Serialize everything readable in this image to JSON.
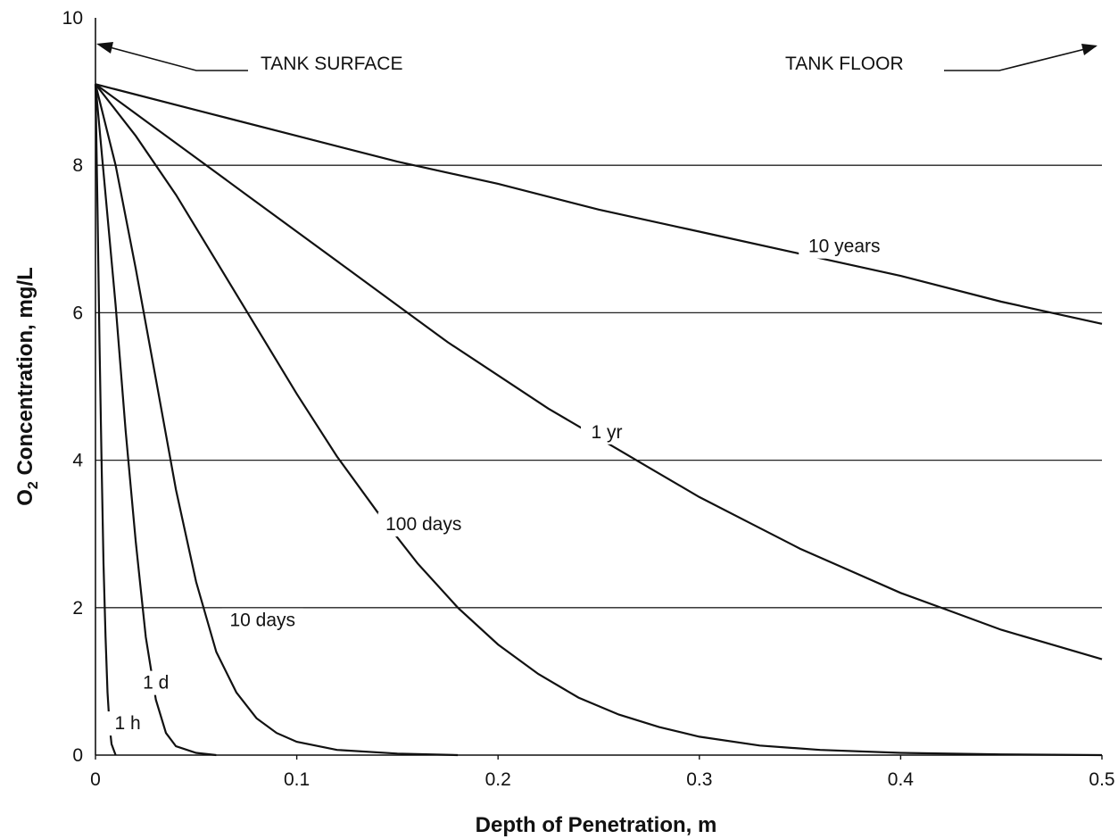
{
  "chart_data": {
    "type": "line",
    "xlabel": "Depth of Penetration, m",
    "ylabel_main": "O",
    "ylabel_sub": "2",
    "ylabel_rest": " Concentration, mg/L",
    "xlim": [
      0,
      0.5
    ],
    "ylim": [
      0,
      10
    ],
    "xticks": [
      0,
      0.1,
      0.2,
      0.3,
      0.4,
      0.5
    ],
    "xtick_labels": [
      "0",
      "0.1",
      "0.2",
      "0.3",
      "0.4",
      "0.5"
    ],
    "yticks": [
      0,
      2,
      4,
      6,
      8,
      10
    ],
    "ytick_labels": [
      "0",
      "2",
      "4",
      "6",
      "8",
      "10"
    ],
    "grid": "horizontal",
    "annotations": {
      "surface": "TANK SURFACE",
      "floor": "TANK FLOOR"
    },
    "series": [
      {
        "name": "1 h",
        "label_pos": [
          0.016,
          0.35
        ],
        "points": [
          [
            0,
            9.1
          ],
          [
            0.001,
            7.4
          ],
          [
            0.002,
            5.6
          ],
          [
            0.003,
            4.0
          ],
          [
            0.004,
            2.6
          ],
          [
            0.005,
            1.6
          ],
          [
            0.006,
            0.85
          ],
          [
            0.007,
            0.4
          ],
          [
            0.008,
            0.15
          ],
          [
            0.01,
            0.0
          ]
        ]
      },
      {
        "name": "1 d",
        "label_pos": [
          0.03,
          0.9
        ],
        "points": [
          [
            0,
            9.1
          ],
          [
            0.005,
            7.6
          ],
          [
            0.01,
            6.1
          ],
          [
            0.015,
            4.4
          ],
          [
            0.02,
            2.9
          ],
          [
            0.025,
            1.6
          ],
          [
            0.03,
            0.75
          ],
          [
            0.035,
            0.3
          ],
          [
            0.04,
            0.12
          ],
          [
            0.05,
            0.03
          ],
          [
            0.06,
            0.0
          ]
        ]
      },
      {
        "name": "10 days",
        "label_pos": [
          0.083,
          1.75
        ],
        "points": [
          [
            0,
            9.1
          ],
          [
            0.01,
            8.0
          ],
          [
            0.02,
            6.6
          ],
          [
            0.03,
            5.1
          ],
          [
            0.04,
            3.6
          ],
          [
            0.05,
            2.35
          ],
          [
            0.06,
            1.4
          ],
          [
            0.07,
            0.85
          ],
          [
            0.08,
            0.5
          ],
          [
            0.09,
            0.3
          ],
          [
            0.1,
            0.18
          ],
          [
            0.12,
            0.07
          ],
          [
            0.15,
            0.02
          ],
          [
            0.18,
            0.0
          ]
        ]
      },
      {
        "name": "100 days",
        "label_pos": [
          0.163,
          3.05
        ],
        "points": [
          [
            0,
            9.1
          ],
          [
            0.02,
            8.4
          ],
          [
            0.04,
            7.6
          ],
          [
            0.06,
            6.7
          ],
          [
            0.08,
            5.8
          ],
          [
            0.1,
            4.9
          ],
          [
            0.12,
            4.05
          ],
          [
            0.14,
            3.3
          ],
          [
            0.16,
            2.6
          ],
          [
            0.18,
            2.0
          ],
          [
            0.2,
            1.5
          ],
          [
            0.22,
            1.1
          ],
          [
            0.24,
            0.78
          ],
          [
            0.26,
            0.55
          ],
          [
            0.28,
            0.38
          ],
          [
            0.3,
            0.25
          ],
          [
            0.33,
            0.13
          ],
          [
            0.36,
            0.07
          ],
          [
            0.4,
            0.03
          ],
          [
            0.45,
            0.01
          ],
          [
            0.5,
            0.0
          ]
        ]
      },
      {
        "name": "1 yr",
        "label_pos": [
          0.254,
          4.3
        ],
        "points": [
          [
            0,
            9.1
          ],
          [
            0.025,
            8.6
          ],
          [
            0.05,
            8.1
          ],
          [
            0.075,
            7.6
          ],
          [
            0.1,
            7.1
          ],
          [
            0.125,
            6.6
          ],
          [
            0.15,
            6.1
          ],
          [
            0.175,
            5.6
          ],
          [
            0.2,
            5.15
          ],
          [
            0.225,
            4.7
          ],
          [
            0.25,
            4.3
          ],
          [
            0.275,
            3.9
          ],
          [
            0.3,
            3.5
          ],
          [
            0.325,
            3.15
          ],
          [
            0.35,
            2.8
          ],
          [
            0.375,
            2.5
          ],
          [
            0.4,
            2.2
          ],
          [
            0.425,
            1.95
          ],
          [
            0.45,
            1.7
          ],
          [
            0.475,
            1.5
          ],
          [
            0.5,
            1.3
          ]
        ]
      },
      {
        "name": "10 years",
        "label_pos": [
          0.372,
          6.82
        ],
        "points": [
          [
            0,
            9.1
          ],
          [
            0.05,
            8.75
          ],
          [
            0.1,
            8.4
          ],
          [
            0.15,
            8.05
          ],
          [
            0.2,
            7.75
          ],
          [
            0.25,
            7.4
          ],
          [
            0.3,
            7.1
          ],
          [
            0.35,
            6.8
          ],
          [
            0.4,
            6.5
          ],
          [
            0.45,
            6.15
          ],
          [
            0.5,
            5.85
          ]
        ]
      }
    ]
  }
}
